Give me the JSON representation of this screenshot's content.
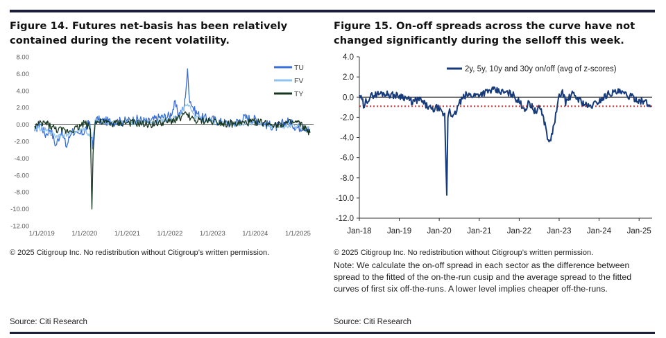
{
  "figures": {
    "left": {
      "title": "Figure 14. Futures net-basis has been relatively contained during the recent volatility.",
      "copyright": "© 2025 Citigroup Inc. No redistribution without Citigroup’s written permission.",
      "source": "Source: Citi Research"
    },
    "right": {
      "title": "Figure 15. On-off spreads across the curve have not changed significantly during the selloff this week.",
      "copyright": "© 2025 Citigroup Inc. No redistribution without Citigroup’s written permission.",
      "note": "Note: We calculate the on-off spread in each sector as the difference between spread to the fitted of the on-the-run cusip and the average spread to the fitted curves of first six off-the-runs. A lower level implies cheaper off-the-runs.",
      "source": "Source: Citi Research"
    }
  },
  "chart_data": [
    {
      "type": "line",
      "title": "Figure 14. Futures net-basis has been relatively contained during the recent volatility.",
      "xlabel": "",
      "ylabel": "",
      "x_range": [
        "2018-11-01",
        "2025-05-15"
      ],
      "ylim": [
        -12,
        8
      ],
      "y_ticks": [
        "8.00",
        "6.00",
        "4.00",
        "2.00",
        "0.00",
        "-2.00",
        "-4.00",
        "-6.00",
        "-8.00",
        "-10.00",
        "-12.00"
      ],
      "x_tick_labels": [
        "1/1/2019",
        "1/1/2020",
        "1/1/2021",
        "1/1/2022",
        "1/1/2023",
        "1/1/2024",
        "1/1/2025"
      ],
      "grid": false,
      "legend": "top-right",
      "series": [
        {
          "name": "TU",
          "color": "#3a6fd8",
          "points": [
            [
              "2018-11-01",
              -0.8
            ],
            [
              "2018-12-15",
              0.2
            ],
            [
              "2019-02-01",
              -1.2
            ],
            [
              "2019-03-15",
              -0.5
            ],
            [
              "2019-05-01",
              -2.5
            ],
            [
              "2019-06-15",
              -0.8
            ],
            [
              "2019-08-01",
              -2.6
            ],
            [
              "2019-09-15",
              -0.6
            ],
            [
              "2019-11-01",
              -1.4
            ],
            [
              "2020-01-01",
              -0.8
            ],
            [
              "2020-02-15",
              0.3
            ],
            [
              "2020-03-10",
              -2.8
            ],
            [
              "2020-04-01",
              0.6
            ],
            [
              "2020-06-01",
              0.4
            ],
            [
              "2020-09-01",
              0.3
            ],
            [
              "2021-01-01",
              0.4
            ],
            [
              "2021-04-01",
              0.6
            ],
            [
              "2021-07-01",
              0.3
            ],
            [
              "2021-10-01",
              0.8
            ],
            [
              "2022-01-01",
              1.0
            ],
            [
              "2022-02-15",
              2.4
            ],
            [
              "2022-03-15",
              1.2
            ],
            [
              "2022-05-01",
              1.8
            ],
            [
              "2022-06-01",
              6.2
            ],
            [
              "2022-06-20",
              3.0
            ],
            [
              "2022-08-01",
              1.6
            ],
            [
              "2022-10-01",
              0.8
            ],
            [
              "2023-01-01",
              0.6
            ],
            [
              "2023-04-01",
              0.2
            ],
            [
              "2023-07-01",
              0.1
            ],
            [
              "2023-10-01",
              0.8
            ],
            [
              "2024-01-01",
              0.6
            ],
            [
              "2024-04-01",
              0.0
            ],
            [
              "2024-07-01",
              -0.3
            ],
            [
              "2024-10-01",
              0.4
            ],
            [
              "2025-01-01",
              -0.4
            ],
            [
              "2025-03-01",
              -0.2
            ],
            [
              "2025-04-15",
              -0.9
            ]
          ]
        },
        {
          "name": "FV",
          "color": "#8fc3ee",
          "points": [
            [
              "2018-11-01",
              -0.4
            ],
            [
              "2019-02-01",
              -0.6
            ],
            [
              "2019-05-01",
              -1.4
            ],
            [
              "2019-08-01",
              -1.2
            ],
            [
              "2019-11-01",
              -0.8
            ],
            [
              "2020-01-01",
              -0.5
            ],
            [
              "2020-03-10",
              -2.0
            ],
            [
              "2020-04-01",
              0.4
            ],
            [
              "2020-09-01",
              0.2
            ],
            [
              "2021-01-01",
              0.3
            ],
            [
              "2021-07-01",
              0.2
            ],
            [
              "2022-01-01",
              0.5
            ],
            [
              "2022-03-15",
              1.0
            ],
            [
              "2022-06-01",
              2.5
            ],
            [
              "2022-08-01",
              0.8
            ],
            [
              "2023-01-01",
              0.3
            ],
            [
              "2023-07-01",
              0.0
            ],
            [
              "2024-01-01",
              0.2
            ],
            [
              "2024-07-01",
              -0.3
            ],
            [
              "2025-01-01",
              -0.2
            ],
            [
              "2025-04-15",
              -0.6
            ]
          ]
        },
        {
          "name": "TY",
          "color": "#14361f",
          "points": [
            [
              "2018-11-01",
              -0.2
            ],
            [
              "2019-02-01",
              0.2
            ],
            [
              "2019-05-01",
              -0.6
            ],
            [
              "2019-08-01",
              -0.8
            ],
            [
              "2019-11-01",
              -0.4
            ],
            [
              "2020-01-01",
              0.2
            ],
            [
              "2020-02-20",
              -0.4
            ],
            [
              "2020-03-05",
              -10.0
            ],
            [
              "2020-03-15",
              -3.0
            ],
            [
              "2020-04-01",
              0.3
            ],
            [
              "2020-09-01",
              0.1
            ],
            [
              "2021-01-01",
              0.2
            ],
            [
              "2021-07-01",
              0.0
            ],
            [
              "2022-01-01",
              0.3
            ],
            [
              "2022-06-01",
              1.2
            ],
            [
              "2022-08-01",
              0.4
            ],
            [
              "2023-01-01",
              0.4
            ],
            [
              "2023-07-01",
              0.0
            ],
            [
              "2024-01-01",
              0.3
            ],
            [
              "2024-07-01",
              0.0
            ],
            [
              "2025-01-01",
              0.2
            ],
            [
              "2025-04-15",
              -1.0
            ]
          ]
        }
      ]
    },
    {
      "type": "line",
      "title": "Figure 15. On-off spreads across the curve have not changed significantly during the selloff this week.",
      "xlabel": "",
      "ylabel": "",
      "x_range": [
        "2018-01-01",
        "2025-04-30"
      ],
      "ylim": [
        -12,
        4
      ],
      "y_ticks": [
        "4.0",
        "2.0",
        "0.0",
        "-2.0",
        "-4.0",
        "-6.0",
        "-8.0",
        "-10.0",
        "-12.0"
      ],
      "x_tick_labels": [
        "Jan-18",
        "Jan-19",
        "Jan-20",
        "Jan-21",
        "Jan-22",
        "Jan-23",
        "Jan-24",
        "Jan-25"
      ],
      "grid": false,
      "legend": "top",
      "reference_lines": [
        {
          "y": 0.0,
          "style": "solid",
          "color": "#000000"
        },
        {
          "y": -0.9,
          "style": "dotted",
          "color": "#d42a2a"
        }
      ],
      "series": [
        {
          "name": "2y, 5y, 10y and 30y on/off (avg of z-scores)",
          "color": "#173a7a",
          "points": [
            [
              "2018-01-01",
              0.2
            ],
            [
              "2018-02-01",
              -0.5
            ],
            [
              "2018-02-15",
              -1.3
            ],
            [
              "2018-03-01",
              -0.4
            ],
            [
              "2018-05-01",
              0.2
            ],
            [
              "2018-08-01",
              0.4
            ],
            [
              "2018-11-01",
              0.2
            ],
            [
              "2019-02-01",
              0.1
            ],
            [
              "2019-05-01",
              -0.5
            ],
            [
              "2019-07-01",
              -0.2
            ],
            [
              "2019-09-01",
              -0.8
            ],
            [
              "2019-11-01",
              -1.3
            ],
            [
              "2019-12-15",
              -1.0
            ],
            [
              "2020-01-15",
              -1.5
            ],
            [
              "2020-02-20",
              -1.8
            ],
            [
              "2020-03-10",
              -9.7
            ],
            [
              "2020-03-20",
              -2.0
            ],
            [
              "2020-04-05",
              -1.0
            ],
            [
              "2020-05-01",
              -2.2
            ],
            [
              "2020-06-01",
              -1.5
            ],
            [
              "2020-07-01",
              -0.6
            ],
            [
              "2020-09-01",
              0.2
            ],
            [
              "2020-12-01",
              0.2
            ],
            [
              "2021-02-01",
              0.4
            ],
            [
              "2021-05-01",
              0.7
            ],
            [
              "2021-08-01",
              0.5
            ],
            [
              "2021-11-01",
              0.3
            ],
            [
              "2022-01-01",
              -0.5
            ],
            [
              "2022-03-01",
              -1.2
            ],
            [
              "2022-04-01",
              -0.5
            ],
            [
              "2022-06-01",
              -1.5
            ],
            [
              "2022-07-15",
              -1.0
            ],
            [
              "2022-09-01",
              -3.0
            ],
            [
              "2022-10-01",
              -4.7
            ],
            [
              "2022-11-01",
              -3.5
            ],
            [
              "2022-12-01",
              -1.8
            ],
            [
              "2023-01-01",
              0.0
            ],
            [
              "2023-02-01",
              0.6
            ],
            [
              "2023-03-01",
              -0.5
            ],
            [
              "2023-05-01",
              0.3
            ],
            [
              "2023-08-01",
              -0.5
            ],
            [
              "2023-10-01",
              -1.0
            ],
            [
              "2024-01-01",
              -0.4
            ],
            [
              "2024-04-01",
              0.4
            ],
            [
              "2024-07-01",
              0.5
            ],
            [
              "2024-10-01",
              0.1
            ],
            [
              "2025-01-01",
              -0.3
            ],
            [
              "2025-03-01",
              -0.5
            ],
            [
              "2025-04-15",
              -1.0
            ]
          ]
        }
      ]
    }
  ]
}
